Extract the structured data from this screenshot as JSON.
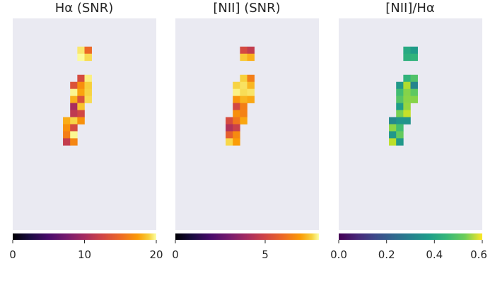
{
  "chart_data": [
    {
      "type": "heatmap",
      "title": "Hα (SNR)",
      "colormap": "inferno",
      "colorbar": {
        "range": [
          0,
          20
        ],
        "ticks": [
          "0",
          "10",
          "20"
        ]
      },
      "background": "#eaeaf2",
      "regions": [
        {
          "name": "upper-knot",
          "shape": "blob",
          "center": [
            10.0,
            5.0
          ],
          "radius": 1.2,
          "value_range": [
            10,
            20
          ]
        },
        {
          "name": "filament",
          "shape": "arc",
          "path": [
            [
              9.6,
              9.0
            ],
            [
              9.4,
              11.5
            ],
            [
              8.6,
              14.0
            ],
            [
              8.0,
              16.5
            ]
          ],
          "width": 1.2,
          "value_range": [
            9,
            20
          ]
        }
      ]
    },
    {
      "type": "heatmap",
      "title": "[NII] (SNR)",
      "colormap": "inferno",
      "colorbar": {
        "range": [
          0,
          8
        ],
        "ticks": [
          "0",
          "5"
        ]
      },
      "background": "#eaeaf2",
      "regions": [
        {
          "name": "upper-knot",
          "shape": "blob",
          "center": [
            10.0,
            5.0
          ],
          "radius": 1.2,
          "value_range": [
            4,
            7.5
          ]
        },
        {
          "name": "filament",
          "shape": "arc",
          "path": [
            [
              9.6,
              9.0
            ],
            [
              9.4,
              11.5
            ],
            [
              8.6,
              14.0
            ],
            [
              8.0,
              16.5
            ]
          ],
          "width": 1.2,
          "value_range": [
            3.5,
            8
          ]
        }
      ]
    },
    {
      "type": "heatmap",
      "title": "[NII]/Hα",
      "colormap": "viridis",
      "colorbar": {
        "range": [
          0,
          0.6
        ],
        "ticks": [
          "0.0",
          "0.2",
          "0.4",
          "0.6"
        ]
      },
      "background": "#eaeaf2",
      "regions": [
        {
          "name": "upper-knot",
          "shape": "blob",
          "center": [
            10.0,
            5.0
          ],
          "radius": 1.2,
          "value_range": [
            0.3,
            0.55
          ]
        },
        {
          "name": "filament",
          "shape": "arc",
          "path": [
            [
              9.6,
              9.0
            ],
            [
              9.4,
              11.5
            ],
            [
              8.6,
              14.0
            ],
            [
              8.0,
              16.5
            ]
          ],
          "width": 1.2,
          "value_range": [
            0.25,
            0.55
          ]
        }
      ]
    }
  ]
}
